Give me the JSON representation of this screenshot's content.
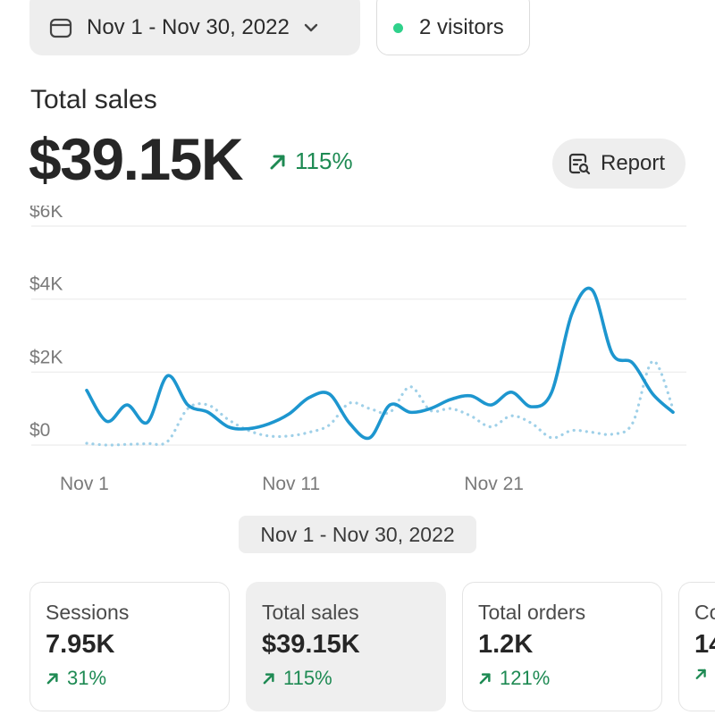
{
  "header": {
    "date_range": "Nov 1 - Nov 30, 2022",
    "visitors": "2 visitors",
    "visitors_dot_color": "#2fd18b"
  },
  "summary": {
    "label": "Total sales",
    "value": "$39.15K",
    "change": "115%",
    "report_label": "Report"
  },
  "range_label": "Nov 1 - Nov 30, 2022",
  "chart_data": {
    "type": "line",
    "x": [
      1,
      2,
      3,
      4,
      5,
      6,
      7,
      8,
      9,
      10,
      11,
      12,
      13,
      14,
      15,
      16,
      17,
      18,
      19,
      20,
      21,
      22,
      23,
      24,
      25,
      26,
      27,
      28,
      29,
      30
    ],
    "x_tick_labels": [
      {
        "x": 1,
        "label": "Nov 1"
      },
      {
        "x": 11,
        "label": "Nov 11"
      },
      {
        "x": 21,
        "label": "Nov 21"
      }
    ],
    "y_tick_labels": [
      {
        "y": 0,
        "label": "$0"
      },
      {
        "y": 2000,
        "label": "$2K"
      },
      {
        "y": 4000,
        "label": "$4K"
      },
      {
        "y": 6000,
        "label": "$6K"
      }
    ],
    "ylim": [
      0,
      6000
    ],
    "grid": true,
    "series": [
      {
        "style": "solid",
        "color": "#1d96cf",
        "values": [
          1500,
          650,
          1100,
          620,
          1900,
          1100,
          900,
          500,
          450,
          580,
          850,
          1300,
          1400,
          600,
          200,
          1100,
          900,
          1000,
          1250,
          1350,
          1100,
          1450,
          1050,
          1450,
          3600,
          4250,
          2500,
          2250,
          1400,
          900
        ]
      },
      {
        "style": "dotted",
        "color": "#9fd0e8",
        "values": [
          50,
          0,
          20,
          40,
          100,
          1000,
          1100,
          700,
          400,
          250,
          250,
          350,
          550,
          1150,
          1000,
          900,
          1600,
          950,
          1000,
          800,
          500,
          800,
          600,
          200,
          400,
          350,
          300,
          600,
          2300,
          1000
        ]
      }
    ]
  },
  "cards": [
    {
      "label": "Sessions",
      "value": "7.95K",
      "change": "31%"
    },
    {
      "label": "Total sales",
      "value": "$39.15K",
      "change": "115%"
    },
    {
      "label": "Total orders",
      "value": "1.2K",
      "change": "121%"
    },
    {
      "label": "Co",
      "value": "14",
      "change": ""
    }
  ]
}
